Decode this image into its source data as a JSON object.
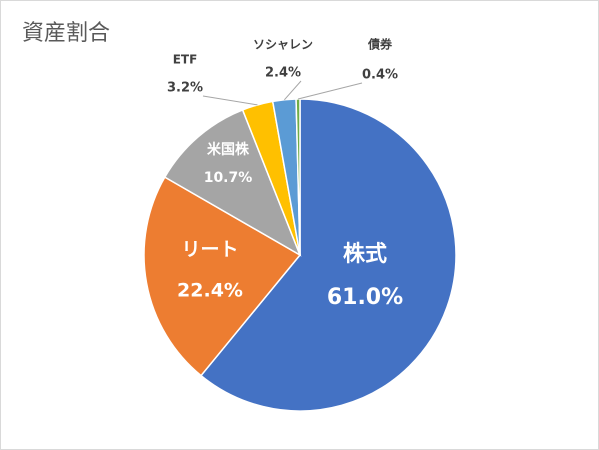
{
  "chart_data": {
    "type": "pie",
    "title": "資産割合",
    "categories": [
      "株式",
      "リート",
      "米国株",
      "ETF",
      "ソシャレン",
      "債券"
    ],
    "values": [
      61.0,
      22.4,
      10.7,
      3.2,
      2.4,
      0.4
    ],
    "value_labels": [
      "61.0%",
      "22.4%",
      "10.7%",
      "3.2%",
      "2.4%",
      "0.4%"
    ],
    "colors": [
      "#4472c4",
      "#ed7d31",
      "#a5a5a5",
      "#ffc000",
      "#5b9bd5",
      "#70ad47"
    ]
  }
}
